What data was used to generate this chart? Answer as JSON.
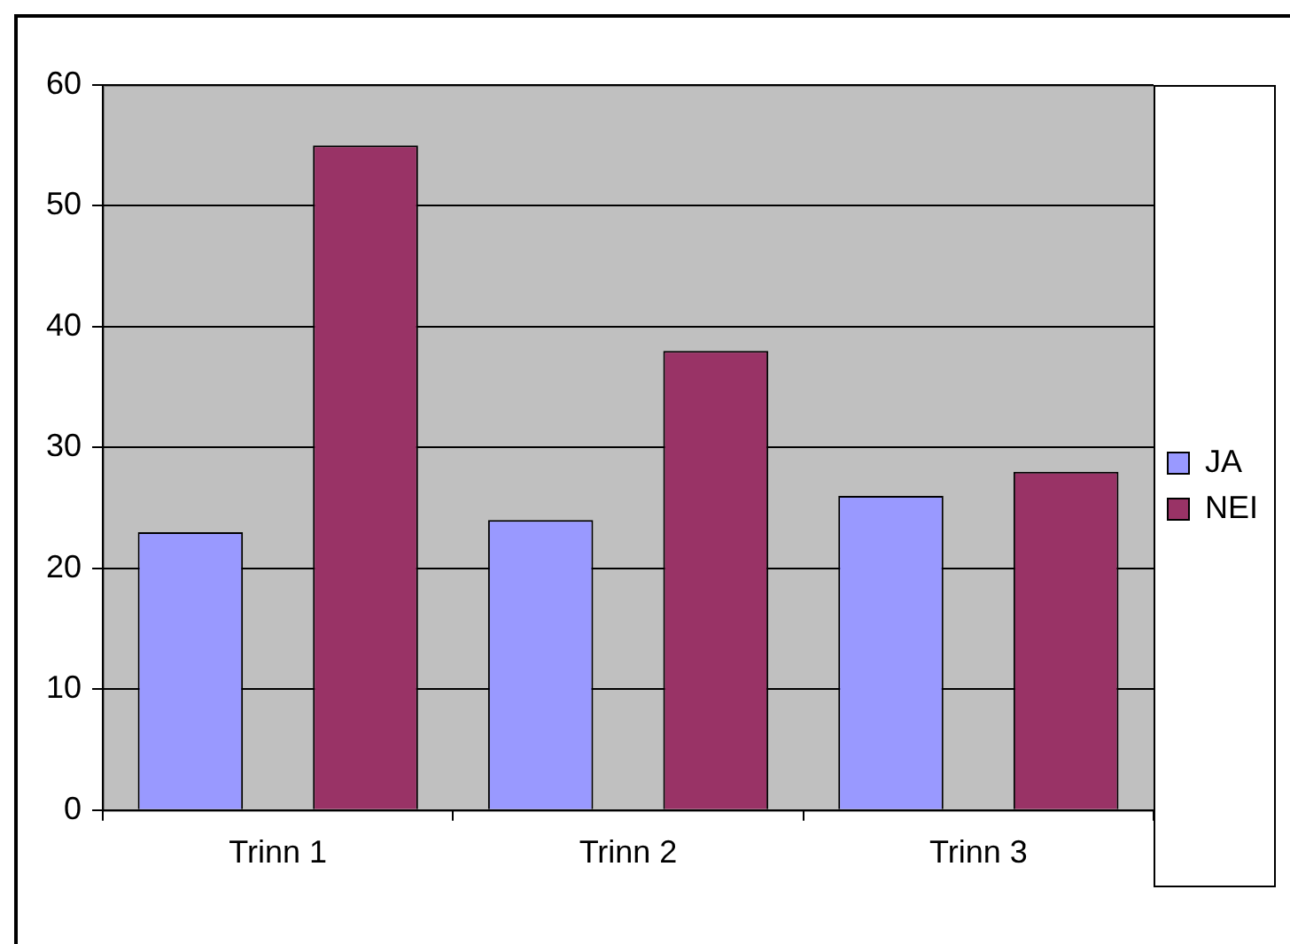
{
  "chart_data": {
    "type": "bar",
    "categories": [
      "Trinn 1",
      "Trinn 2",
      "Trinn 3"
    ],
    "series": [
      {
        "name": "JA",
        "color": "#9999ff",
        "values": [
          23,
          24,
          26
        ]
      },
      {
        "name": "NEI",
        "color": "#993366",
        "values": [
          55,
          38,
          28
        ]
      }
    ],
    "ylim": [
      0,
      60
    ],
    "yticks": [
      0,
      10,
      20,
      30,
      40,
      50,
      60
    ],
    "grid": "y",
    "legend": "right"
  }
}
